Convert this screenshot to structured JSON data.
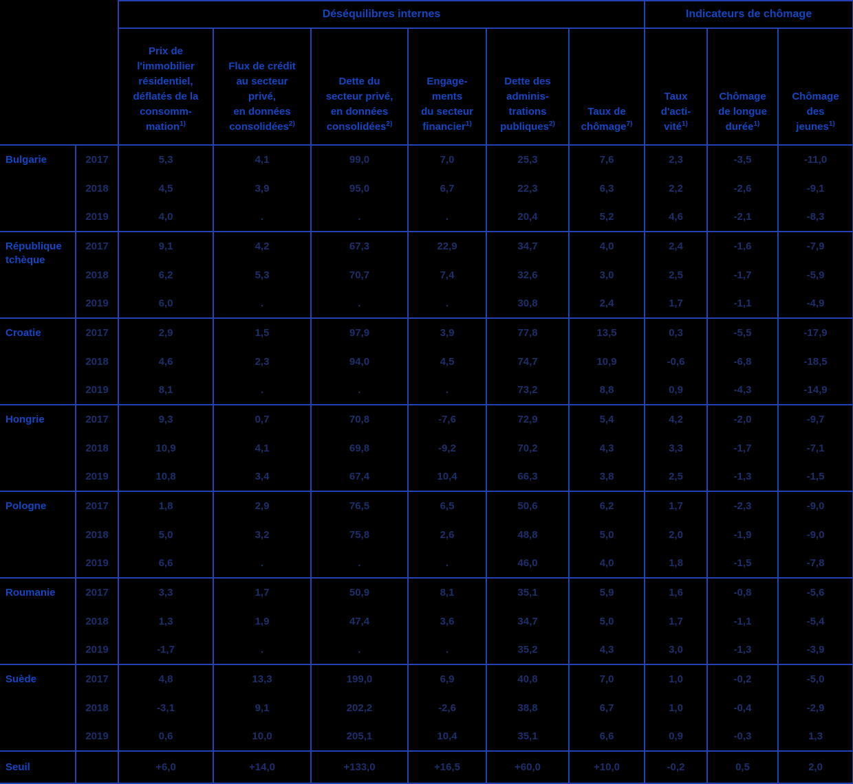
{
  "colors": {
    "background": "#000000",
    "header_text": "#1546c2",
    "body_text": "#1d2f6a",
    "border": "#2143b4"
  },
  "chart_data": {
    "type": "table",
    "group_headers": [
      {
        "label": "Déséquilibres internes",
        "span": 6
      },
      {
        "label": "Indicateurs de chômage",
        "span": 3
      }
    ],
    "columns": [
      {
        "label": "Prix de\nl'immobilier\nrésidentiel,\ndéflatés de la\nconsomm-\nmation",
        "sup": "1)"
      },
      {
        "label": "Flux de crédit\nau secteur\nprivé,\nen données\nconsolidées",
        "sup": "2)"
      },
      {
        "label": "Dette du\nsecteur privé,\nen données\nconsolidées",
        "sup": "2)"
      },
      {
        "label": "Engage-\nments\ndu secteur\nfinancier",
        "sup": "1)"
      },
      {
        "label": "Dette des\nadminis-\ntrations\npubliques",
        "sup": "2)"
      },
      {
        "label": "Taux de\nchômage",
        "sup": "7)"
      },
      {
        "label": "Taux\nd'acti-\nvité",
        "sup": "1)"
      },
      {
        "label": "Chômage\nde longue\ndurée",
        "sup": "1)"
      },
      {
        "label": "Chômage\ndes\njeunes",
        "sup": "1)"
      }
    ],
    "row_groups": [
      {
        "country": "Bulgarie",
        "rows": [
          {
            "year": "2017",
            "values": [
              "5,3",
              "4,1",
              "99,0",
              "7,0",
              "25,3",
              "7,6",
              "2,3",
              "-3,5",
              "-11,0"
            ]
          },
          {
            "year": "2018",
            "values": [
              "4,5",
              "3,9",
              "95,0",
              "6,7",
              "22,3",
              "6,3",
              "2,2",
              "-2,6",
              "-9,1"
            ]
          },
          {
            "year": "2019",
            "values": [
              "4,0",
              ".",
              ".",
              ".",
              "20,4",
              "5,2",
              "4,6",
              "-2,1",
              "-8,3"
            ]
          }
        ]
      },
      {
        "country": "République tchèque",
        "rows": [
          {
            "year": "2017",
            "values": [
              "9,1",
              "4,2",
              "67,3",
              "22,9",
              "34,7",
              "4,0",
              "2,4",
              "-1,6",
              "-7,9"
            ]
          },
          {
            "year": "2018",
            "values": [
              "6,2",
              "5,3",
              "70,7",
              "7,4",
              "32,6",
              "3,0",
              "2,5",
              "-1,7",
              "-5,9"
            ]
          },
          {
            "year": "2019",
            "values": [
              "6,0",
              ".",
              ".",
              ".",
              "30,8",
              "2,4",
              "1,7",
              "-1,1",
              "-4,9"
            ]
          }
        ]
      },
      {
        "country": "Croatie",
        "rows": [
          {
            "year": "2017",
            "values": [
              "2,9",
              "1,5",
              "97,9",
              "3,9",
              "77,8",
              "13,5",
              "0,3",
              "-5,5",
              "-17,9"
            ]
          },
          {
            "year": "2018",
            "values": [
              "4,6",
              "2,3",
              "94,0",
              "4,5",
              "74,7",
              "10,9",
              "-0,6",
              "-6,8",
              "-18,5"
            ]
          },
          {
            "year": "2019",
            "values": [
              "8,1",
              ".",
              ".",
              ".",
              "73,2",
              "8,8",
              "0,9",
              "-4,3",
              "-14,9"
            ]
          }
        ]
      },
      {
        "country": "Hongrie",
        "rows": [
          {
            "year": "2017",
            "values": [
              "9,3",
              "0,7",
              "70,8",
              "-7,6",
              "72,9",
              "5,4",
              "4,2",
              "-2,0",
              "-9,7"
            ]
          },
          {
            "year": "2018",
            "values": [
              "10,9",
              "4,1",
              "69,8",
              "-9,2",
              "70,2",
              "4,3",
              "3,3",
              "-1,7",
              "-7,1"
            ]
          },
          {
            "year": "2019",
            "values": [
              "10,8",
              "3,4",
              "67,4",
              "10,4",
              "66,3",
              "3,8",
              "2,5",
              "-1,3",
              "-1,5"
            ]
          }
        ]
      },
      {
        "country": "Pologne",
        "rows": [
          {
            "year": "2017",
            "values": [
              "1,8",
              "2,9",
              "76,5",
              "6,5",
              "50,6",
              "6,2",
              "1,7",
              "-2,3",
              "-9,0"
            ]
          },
          {
            "year": "2018",
            "values": [
              "5,0",
              "3,2",
              "75,8",
              "2,6",
              "48,8",
              "5,0",
              "2,0",
              "-1,9",
              "-9,0"
            ]
          },
          {
            "year": "2019",
            "values": [
              "6,6",
              ".",
              ".",
              ".",
              "46,0",
              "4,0",
              "1,8",
              "-1,5",
              "-7,8"
            ]
          }
        ]
      },
      {
        "country": "Roumanie",
        "rows": [
          {
            "year": "2017",
            "values": [
              "3,3",
              "1,7",
              "50,9",
              "8,1",
              "35,1",
              "5,9",
              "1,6",
              "-0,8",
              "-5,6"
            ]
          },
          {
            "year": "2018",
            "values": [
              "1,3",
              "1,9",
              "47,4",
              "3,6",
              "34,7",
              "5,0",
              "1,7",
              "-1,1",
              "-5,4"
            ]
          },
          {
            "year": "2019",
            "values": [
              "-1,7",
              ".",
              ".",
              ".",
              "35,2",
              "4,3",
              "3,0",
              "-1,3",
              "-3,9"
            ]
          }
        ]
      },
      {
        "country": "Suède",
        "rows": [
          {
            "year": "2017",
            "values": [
              "4,8",
              "13,3",
              "199,0",
              "6,9",
              "40,8",
              "7,0",
              "1,0",
              "-0,2",
              "-5,0"
            ]
          },
          {
            "year": "2018",
            "values": [
              "-3,1",
              "9,1",
              "202,2",
              "-2,6",
              "38,8",
              "6,7",
              "1,0",
              "-0,4",
              "-2,9"
            ]
          },
          {
            "year": "2019",
            "values": [
              "0,6",
              "10,0",
              "205,1",
              "10,4",
              "35,1",
              "6,6",
              "0,9",
              "-0,3",
              "1,3"
            ]
          }
        ]
      }
    ],
    "threshold_row": {
      "label": "Seuil",
      "values": [
        "+6,0",
        "+14,0",
        "+133,0",
        "+16,5",
        "+60,0",
        "+10,0",
        "-0,2",
        "0,5",
        "2,0"
      ]
    }
  }
}
